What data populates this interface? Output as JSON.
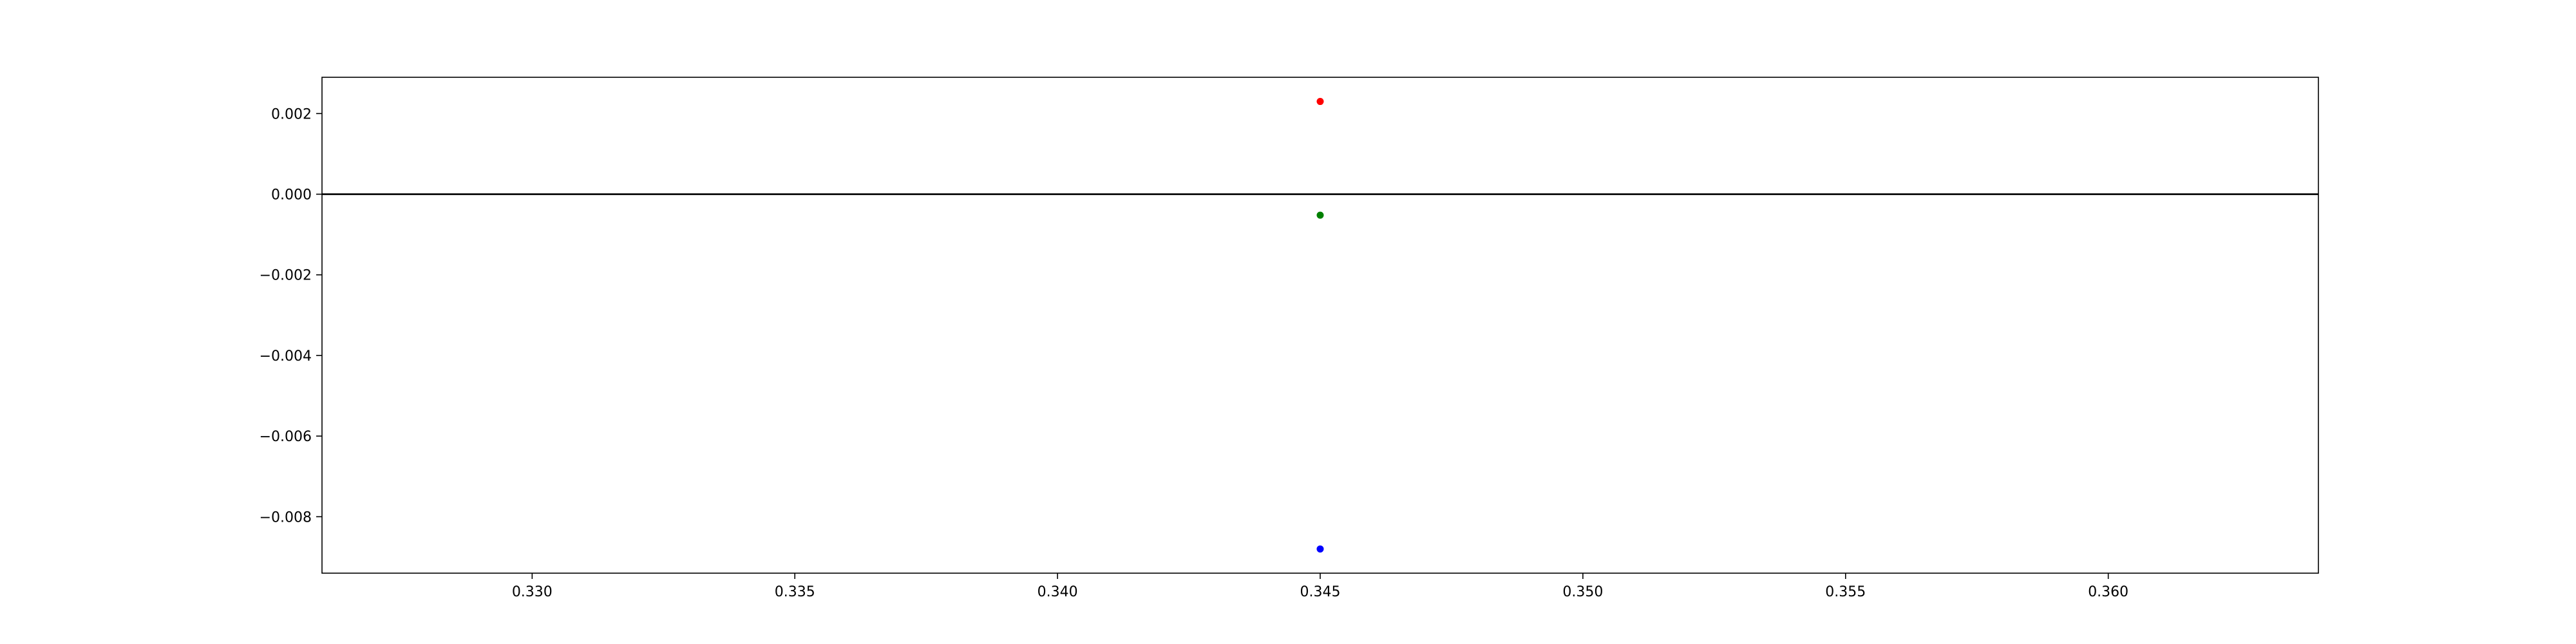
{
  "chart_data": {
    "type": "scatter",
    "title": "",
    "xlabel": "",
    "ylabel": "",
    "xlim": [
      0.326,
      0.364
    ],
    "ylim": [
      -0.0094,
      0.0029
    ],
    "x_ticks": [
      0.33,
      0.335,
      0.34,
      0.345,
      0.35,
      0.355,
      0.36
    ],
    "x_tick_labels": [
      "0.330",
      "0.335",
      "0.340",
      "0.345",
      "0.350",
      "0.355",
      "0.360"
    ],
    "y_ticks": [
      0.002,
      0.0,
      -0.002,
      -0.004,
      -0.006,
      -0.008
    ],
    "y_tick_labels": [
      "0.002",
      "0.000",
      "−0.002",
      "−0.004",
      "−0.006",
      "−0.008"
    ],
    "hline_y": 0.0,
    "grid": false,
    "series": [
      {
        "color": "#ff0000",
        "points": [
          {
            "x": 0.345,
            "y": 0.0023
          }
        ]
      },
      {
        "color": "#008000",
        "points": [
          {
            "x": 0.345,
            "y": -0.00052
          }
        ]
      },
      {
        "color": "#0000ff",
        "points": [
          {
            "x": 0.345,
            "y": -0.0088
          }
        ]
      }
    ]
  }
}
